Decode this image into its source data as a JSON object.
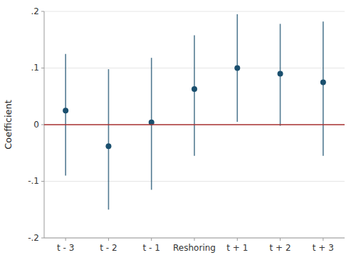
{
  "chart_data": {
    "type": "scatter",
    "categories": [
      "t - 3",
      "t - 2",
      "t - 1",
      "Reshoring",
      "t + 1",
      "t + 2",
      "t + 3"
    ],
    "values": [
      0.025,
      -0.038,
      0.004,
      0.063,
      0.1,
      0.09,
      0.075
    ],
    "ci_lower": [
      -0.09,
      -0.15,
      -0.115,
      -0.055,
      0.005,
      -0.002,
      -0.055
    ],
    "ci_upper": [
      0.125,
      0.098,
      0.118,
      0.158,
      0.195,
      0.178,
      0.182
    ],
    "reference_line": 0,
    "color": "#1a4f6e",
    "ylim": [
      -0.2,
      0.2
    ],
    "yticks": [
      {
        "value": -0.2,
        "label": "-.2"
      },
      {
        "value": -0.1,
        "label": "-.1"
      },
      0,
      {
        "value": 0.1,
        "label": ".1"
      },
      {
        "value": 0.2,
        "label": ".2"
      }
    ],
    "ylabel": "Coefficient",
    "grid": true
  }
}
